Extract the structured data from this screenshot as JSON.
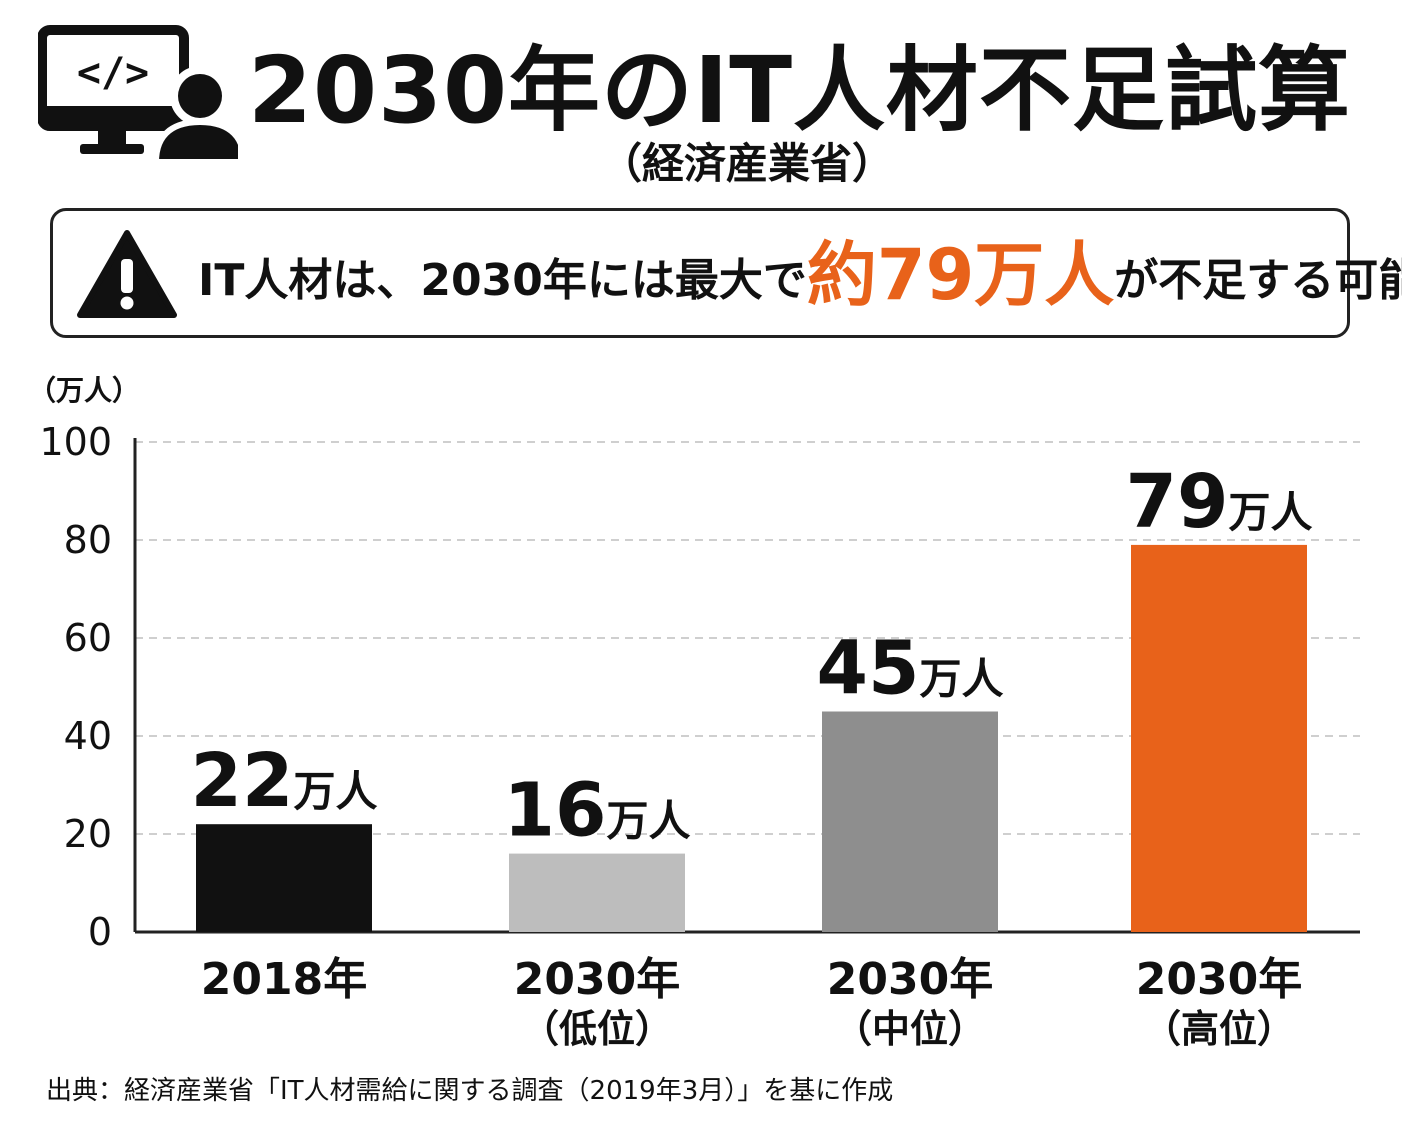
{
  "header": {
    "icon": "computer-monitor-code-icon with person-icon",
    "title": "2030年のIT人材不足試算",
    "subtitle": "（経済産業省）"
  },
  "callout": {
    "icon": "warning-triangle-icon",
    "text_before": "IT人材は、2030年には最大で",
    "highlight": "約79万人",
    "text_after": "が不足する可能性",
    "highlight_color": "#e8621a"
  },
  "chart_data": {
    "type": "bar",
    "ylabel": "（万人）",
    "ylim": [
      0,
      100
    ],
    "yticks": [
      "0",
      "20",
      "40",
      "60",
      "80",
      "100"
    ],
    "grid": true,
    "categories": [
      {
        "line1": "2018年",
        "line2": ""
      },
      {
        "line1": "2030年",
        "line2": "（低位）"
      },
      {
        "line1": "2030年",
        "line2": "（中位）"
      },
      {
        "line1": "2030年",
        "line2": "（高位）"
      }
    ],
    "values": [
      22,
      16,
      45,
      79
    ],
    "value_labels": [
      {
        "num": "22",
        "unit": "万人"
      },
      {
        "num": "16",
        "unit": "万人"
      },
      {
        "num": "45",
        "unit": "万人"
      },
      {
        "num": "79",
        "unit": "万人"
      }
    ],
    "colors": [
      "#111111",
      "#bdbdbd",
      "#8e8e8e",
      "#e8621a"
    ]
  },
  "footer": {
    "source": "出典：経済産業省「IT人材需給に関する調査（2019年3月）」を基に作成"
  }
}
